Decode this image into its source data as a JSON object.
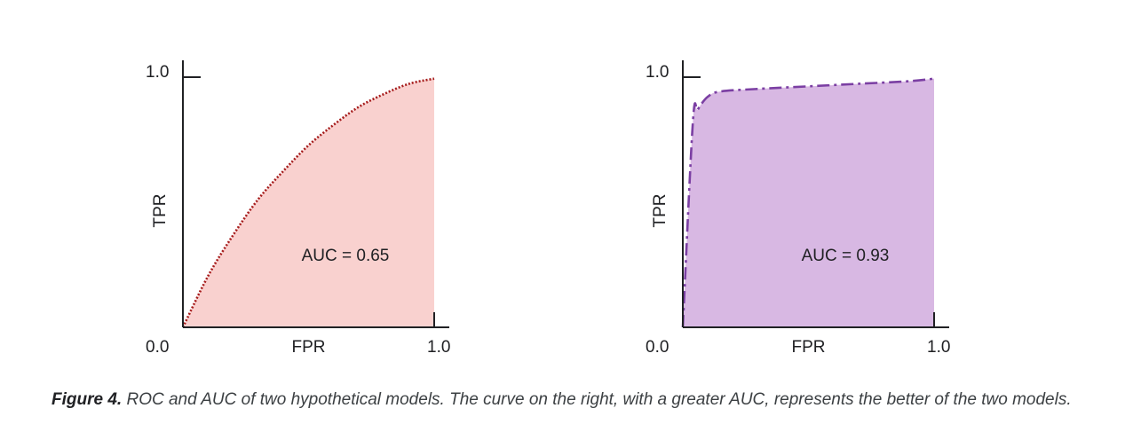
{
  "chart_data": [
    {
      "type": "area",
      "xlabel": "FPR",
      "ylabel": "TPR",
      "xlim": [
        0,
        1
      ],
      "ylim": [
        0,
        1
      ],
      "x_ticks": [
        "0.0",
        "1.0"
      ],
      "y_ticks": [
        "0.0",
        "1.0"
      ],
      "annotation": "AUC = 0.65",
      "fill_color": "#f9d1cf",
      "line_color": "#a61c1c",
      "line_style": "dotted",
      "grid": false,
      "series": [
        {
          "x": [
            0,
            0.1,
            0.2,
            0.3,
            0.4,
            0.5,
            0.6,
            0.7,
            0.8,
            0.9,
            1.0
          ],
          "y": [
            0,
            0.2,
            0.36,
            0.5,
            0.61,
            0.71,
            0.79,
            0.86,
            0.91,
            0.95,
            0.97
          ]
        }
      ]
    },
    {
      "type": "area",
      "xlabel": "FPR",
      "ylabel": "TPR",
      "xlim": [
        0,
        1
      ],
      "ylim": [
        0,
        1
      ],
      "x_ticks": [
        "0.0",
        "1.0"
      ],
      "y_ticks": [
        "0.0",
        "1.0"
      ],
      "annotation": "AUC = 0.93",
      "fill_color": "#d8b8e3",
      "line_color": "#7b3fa3",
      "line_style": "dashdot",
      "grid": false,
      "series": [
        {
          "x": [
            0,
            0.04,
            0.06,
            0.1,
            0.15,
            0.3,
            0.5,
            0.7,
            0.9,
            1.0
          ],
          "y": [
            0,
            0.8,
            0.85,
            0.9,
            0.92,
            0.93,
            0.94,
            0.95,
            0.96,
            0.97
          ]
        }
      ]
    }
  ],
  "caption": {
    "lead": "Figure 4.",
    "text": " ROC and AUC of two hypothetical models. The curve on the right, with a greater AUC, represents the better of the two models."
  }
}
